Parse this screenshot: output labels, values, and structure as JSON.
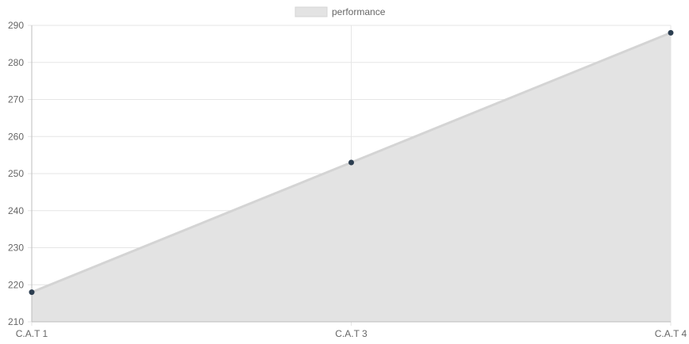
{
  "chart_data": {
    "type": "area",
    "categories": [
      "C.A.T 1",
      "C.A.T 3",
      "C.A.T 4"
    ],
    "series": [
      {
        "name": "performance",
        "values": [
          218,
          253,
          288
        ]
      }
    ],
    "ylim": [
      210,
      290
    ],
    "yticks": [
      210,
      220,
      230,
      240,
      250,
      260,
      270,
      280,
      290
    ],
    "grid": true,
    "legend_position": "top-center",
    "colors": {
      "fill": "#e3e3e3",
      "line": "#d4d4d4",
      "point": "#2c3e50",
      "grid": "#e6e6e6",
      "axis": "#bdbdbd",
      "text": "#666666"
    }
  }
}
